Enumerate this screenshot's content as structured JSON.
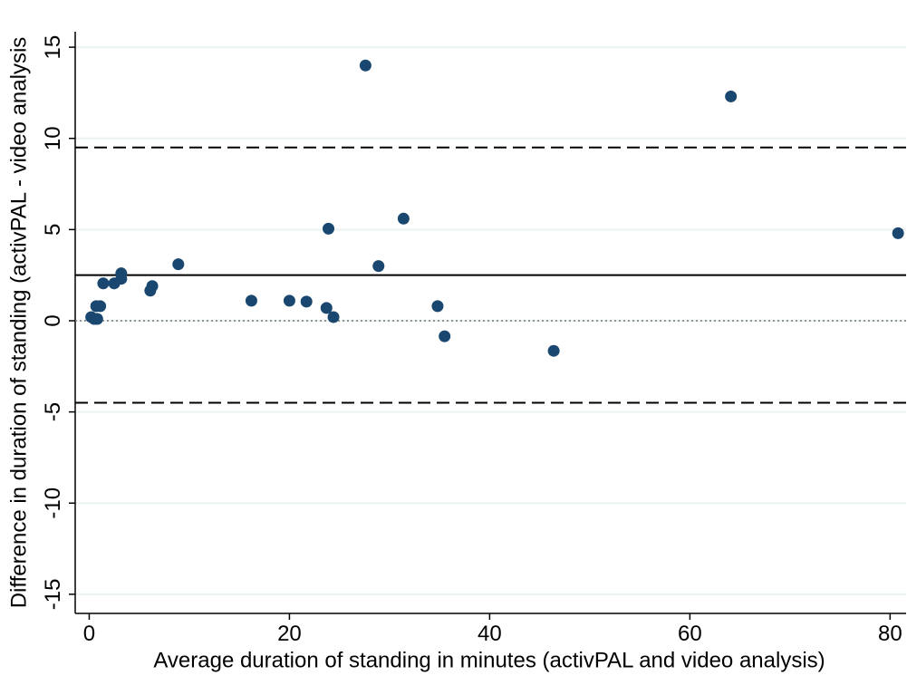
{
  "chart_data": {
    "type": "scatter",
    "x_label": "Average duration of standing in minutes (activPAL and video analysis)",
    "y_label": "Difference in duration of standing (activPAL - video analysis",
    "x": [
      0.2,
      0.7,
      1.1,
      0.5,
      0.8,
      1.4,
      2.5,
      3.2,
      3.2,
      6.1,
      6.3,
      8.9,
      16.2,
      20.0,
      21.7,
      23.7,
      23.9,
      24.4,
      27.6,
      28.9,
      31.4,
      34.8,
      35.5,
      46.4,
      64.1,
      80.8
    ],
    "values": [
      0.2,
      0.8,
      0.8,
      0.1,
      0.1,
      2.05,
      2.05,
      2.6,
      2.3,
      1.65,
      1.9,
      3.1,
      1.1,
      1.1,
      1.05,
      0.7,
      5.05,
      0.2,
      14.0,
      3.0,
      5.6,
      0.8,
      -0.85,
      -1.65,
      12.3,
      4.8
    ],
    "color": "#1a476f",
    "xlim": [
      -1.4,
      81.6
    ],
    "ylim": [
      -16.05,
      15.85
    ],
    "xticks": [
      0,
      20,
      40,
      60,
      80
    ],
    "yticks": [
      -15,
      -10,
      -5,
      0,
      5,
      10,
      15
    ],
    "grid": true,
    "hlines": [
      {
        "value": 2.5,
        "style": "solid"
      },
      {
        "value": 9.5,
        "style": "dashed"
      },
      {
        "value": -4.5,
        "style": "dashed"
      },
      {
        "value": 0,
        "style": "dotted"
      }
    ]
  }
}
